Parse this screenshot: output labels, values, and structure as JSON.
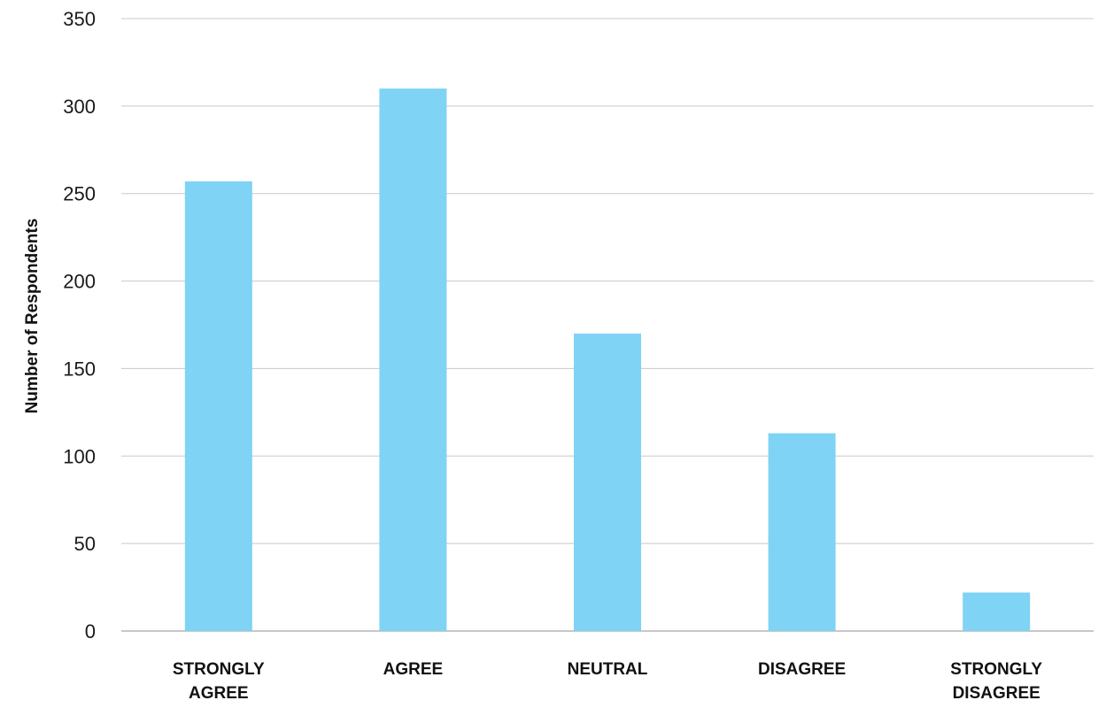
{
  "chart_data": {
    "type": "bar",
    "categories": [
      "STRONGLY AGREE",
      "AGREE",
      "NEUTRAL",
      "DISAGREE",
      "STRONGLY DISAGREE"
    ],
    "category_lines": [
      [
        "STRONGLY",
        "AGREE"
      ],
      [
        "AGREE"
      ],
      [
        "NEUTRAL"
      ],
      [
        "DISAGREE"
      ],
      [
        "STRONGLY",
        "DISAGREE"
      ]
    ],
    "values": [
      257,
      310,
      170,
      113,
      22
    ],
    "xlabel": "",
    "ylabel": "Number of Respondents",
    "ylim": [
      0,
      350
    ],
    "yticks": [
      0,
      50,
      100,
      150,
      200,
      250,
      300,
      350
    ],
    "grid": true,
    "bar_color": "#7fd3f4"
  }
}
